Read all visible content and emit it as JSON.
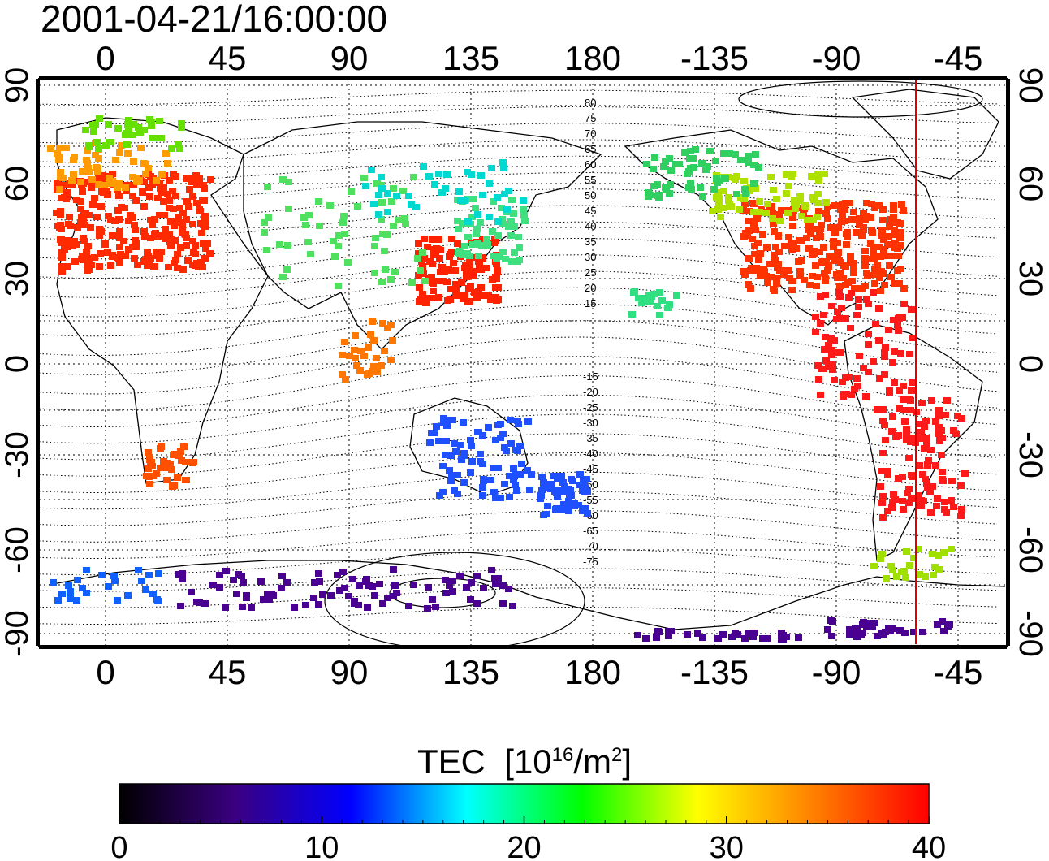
{
  "title": "2001-04-21/16:00:00",
  "map": {
    "top_lon_ticks": [
      "0",
      "45",
      "90",
      "135",
      "180",
      "-135",
      "-90",
      "-45"
    ],
    "bottom_lon_ticks": [
      "0",
      "45",
      "90",
      "135",
      "180",
      "-135",
      "-90",
      "-45"
    ],
    "lat_ticks": [
      "90",
      "60",
      "30",
      "0",
      "-30",
      "-60",
      "-90"
    ],
    "contour_labels_north": [
      "80",
      "75",
      "70",
      "65",
      "60",
      "55",
      "50",
      "45",
      "40",
      "35",
      "30",
      "25",
      "20",
      "15"
    ],
    "contour_labels_south": [
      "-15",
      "-20",
      "-25",
      "-30",
      "-35",
      "-40",
      "-45",
      "-50",
      "-55",
      "-60",
      "-65",
      "-70",
      "-75"
    ],
    "marker_line_color": "#e00000",
    "regions": [
      {
        "name": "europe",
        "color": "#ff2a00"
      },
      {
        "name": "north-america",
        "color": "#ff3300"
      },
      {
        "name": "east-asia",
        "color": "#ff2200"
      },
      {
        "name": "australia-nz",
        "color": "#1e50ff"
      },
      {
        "name": "antarctic",
        "color": "#4a0090"
      },
      {
        "name": "south-america",
        "color": "#ff1a1a"
      }
    ]
  },
  "colorbar": {
    "label": "TEC",
    "unit_base": "[10",
    "unit_exp": "16",
    "unit_mid": "/m",
    "unit_exp2": "2",
    "unit_end": "]",
    "ticks": [
      "0",
      "10",
      "20",
      "30",
      "40"
    ],
    "stops": [
      "#000000",
      "#3a0080",
      "#0000ff",
      "#00ffff",
      "#00ff00",
      "#ffff00",
      "#ff8000",
      "#ff0000"
    ]
  }
}
